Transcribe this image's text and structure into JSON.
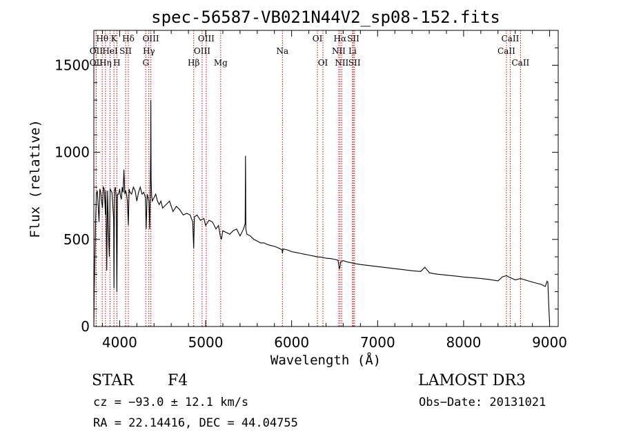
{
  "chart_data": {
    "type": "line",
    "title": "spec-56587-VB021N44V2_sp08-152.fits",
    "xlabel": "Wavelength (Å)",
    "ylabel": "Flux (relative)",
    "xlim": [
      3700,
      9100
    ],
    "ylim": [
      0,
      1700
    ],
    "x_ticks": [
      4000,
      5000,
      6000,
      7000,
      8000,
      9000
    ],
    "y_ticks": [
      0,
      500,
      1000,
      1500
    ],
    "series": [
      {
        "name": "flux",
        "x": [
          3700,
          3705,
          3712,
          3720,
          3730,
          3740,
          3750,
          3760,
          3770,
          3780,
          3790,
          3800,
          3810,
          3820,
          3830,
          3835,
          3840,
          3850,
          3860,
          3870,
          3880,
          3889,
          3900,
          3910,
          3920,
          3930,
          3934,
          3940,
          3950,
          3960,
          3968,
          3975,
          3990,
          4000,
          4010,
          4020,
          4030,
          4040,
          4050,
          4060,
          4070,
          4080,
          4090,
          4101,
          4110,
          4120,
          4140,
          4160,
          4180,
          4200,
          4220,
          4240,
          4260,
          4280,
          4300,
          4308,
          4320,
          4340,
          4350,
          4360,
          4363,
          4366,
          4372,
          4380,
          4400,
          4420,
          4440,
          4460,
          4480,
          4500,
          4540,
          4580,
          4620,
          4660,
          4700,
          4740,
          4780,
          4820,
          4850,
          4861,
          4870,
          4900,
          4940,
          4980,
          5000,
          5040,
          5080,
          5120,
          5150,
          5170,
          5183,
          5200,
          5240,
          5280,
          5320,
          5360,
          5400,
          5440,
          5460,
          5464,
          5468,
          5480,
          5520,
          5560,
          5600,
          5640,
          5680,
          5720,
          5760,
          5800,
          5850,
          5890,
          5893,
          5900,
          5950,
          6000,
          6050,
          6100,
          6150,
          6200,
          6250,
          6300,
          6350,
          6400,
          6450,
          6500,
          6540,
          6555,
          6563,
          6570,
          6600,
          6650,
          6700,
          6750,
          6800,
          6900,
          7000,
          7100,
          7200,
          7300,
          7400,
          7500,
          7550,
          7600,
          7605,
          7650,
          7700,
          7800,
          7900,
          8000,
          8100,
          8200,
          8300,
          8400,
          8450,
          8498,
          8542,
          8600,
          8662,
          8700,
          8750,
          8800,
          8850,
          8900,
          8950,
          8970,
          8980,
          8990,
          9000
        ],
        "y": [
          0,
          220,
          400,
          600,
          760,
          780,
          700,
          600,
          790,
          770,
          720,
          680,
          800,
          790,
          700,
          640,
          780,
          320,
          780,
          550,
          400,
          790,
          780,
          770,
          700,
          620,
          220,
          780,
          800,
          740,
          200,
          760,
          760,
          790,
          750,
          730,
          800,
          770,
          900,
          760,
          780,
          760,
          720,
          580,
          790,
          770,
          760,
          800,
          780,
          720,
          770,
          800,
          760,
          770,
          740,
          560,
          760,
          720,
          560,
          980,
          1300,
          850,
          750,
          720,
          740,
          760,
          720,
          700,
          720,
          680,
          700,
          720,
          660,
          690,
          670,
          640,
          650,
          640,
          600,
          450,
          630,
          640,
          610,
          620,
          580,
          610,
          600,
          560,
          580,
          520,
          500,
          550,
          540,
          530,
          550,
          560,
          520,
          560,
          590,
          980,
          560,
          530,
          520,
          500,
          490,
          480,
          480,
          470,
          465,
          460,
          450,
          440,
          420,
          445,
          440,
          430,
          425,
          420,
          415,
          410,
          405,
          400,
          398,
          392,
          390,
          386,
          380,
          330,
          345,
          372,
          378,
          370,
          365,
          360,
          356,
          350,
          344,
          338,
          332,
          326,
          320,
          316,
          340,
          310,
          308,
          304,
          300,
          295,
          290,
          284,
          280,
          276,
          270,
          262,
          285,
          292,
          280,
          268,
          275,
          270,
          262,
          255,
          248,
          242,
          230,
          260,
          255,
          120,
          20
        ]
      }
    ],
    "spectral_lines": [
      {
        "label": "OII",
        "x": 3727,
        "row": 2
      },
      {
        "label": "OII",
        "x": 3727,
        "row": 3
      },
      {
        "label": "Hθ",
        "x": 3798,
        "row": 1
      },
      {
        "label": "Hη",
        "x": 3835,
        "row": 3
      },
      {
        "label": "HeI",
        "x": 3889,
        "row": 2
      },
      {
        "label": "K",
        "x": 3934,
        "row": 1
      },
      {
        "label": "H",
        "x": 3968,
        "row": 3
      },
      {
        "label": "SII",
        "x": 4069,
        "row": 2
      },
      {
        "label": "Hδ",
        "x": 4101,
        "row": 1
      },
      {
        "label": "OIII",
        "x": 4363,
        "row": 1
      },
      {
        "label": "Hγ",
        "x": 4340,
        "row": 2
      },
      {
        "label": "G",
        "x": 4304,
        "row": 3
      },
      {
        "label": "Hβ",
        "x": 4861,
        "row": 3
      },
      {
        "label": "OIII",
        "x": 4959,
        "row": 2
      },
      {
        "label": "OIII",
        "x": 5007,
        "row": 1
      },
      {
        "label": "Mg",
        "x": 5175,
        "row": 3
      },
      {
        "label": "Na",
        "x": 5893,
        "row": 2
      },
      {
        "label": "OI",
        "x": 6300,
        "row": 1
      },
      {
        "label": "OI",
        "x": 6364,
        "row": 3
      },
      {
        "label": "Hα",
        "x": 6563,
        "row": 1
      },
      {
        "label": "NII",
        "x": 6548,
        "row": 2
      },
      {
        "label": "NII",
        "x": 6583,
        "row": 3
      },
      {
        "label": "SII",
        "x": 6717,
        "row": 1
      },
      {
        "label": "Li",
        "x": 6708,
        "row": 2
      },
      {
        "label": "SII",
        "x": 6731,
        "row": 3
      },
      {
        "label": "CaII",
        "x": 8542,
        "row": 1
      },
      {
        "label": "CaII",
        "x": 8498,
        "row": 2
      },
      {
        "label": "CaII",
        "x": 8662,
        "row": 3
      }
    ]
  },
  "info": {
    "object_class": "STAR",
    "subclass": "F4",
    "survey": "LAMOST DR3",
    "redshift": "cz = −93.0 ± 12.1 km/s",
    "obs_date": "Obs−Date: 20131021",
    "coords": "RA =  22.14416, DEC =  44.04755"
  }
}
